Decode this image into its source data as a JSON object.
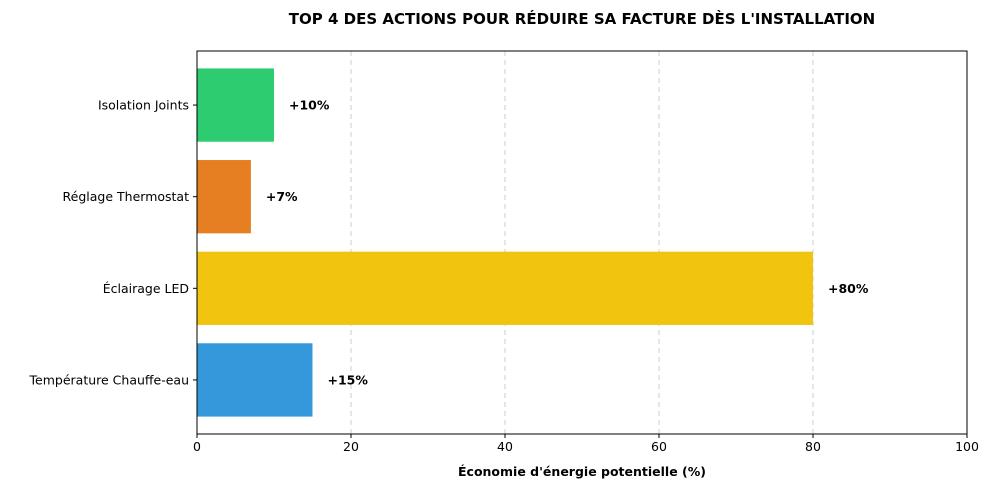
{
  "chart_data": {
    "type": "bar",
    "orientation": "horizontal",
    "title": "TOP 4 DES ACTIONS POUR RÉDUIRE SA FACTURE DÈS L'INSTALLATION",
    "xlabel": "Économie d'énergie potentielle (%)",
    "ylabel": "",
    "categories": [
      "Température Chauffe-eau",
      "Éclairage LED",
      "Réglage Thermostat",
      "Isolation Joints"
    ],
    "values": [
      15,
      80,
      7,
      10
    ],
    "data_labels": [
      "+15%",
      "+80%",
      "+7%",
      "+10%"
    ],
    "colors": [
      "#3498db",
      "#f1c40f",
      "#e67e22",
      "#2ecc71"
    ],
    "xlim": [
      0,
      100
    ],
    "xticks": [
      0,
      20,
      40,
      60,
      80,
      100
    ],
    "xtick_labels": [
      "0",
      "20",
      "40",
      "60",
      "80",
      "100"
    ],
    "grid": "x-dashed",
    "legend": "none"
  }
}
